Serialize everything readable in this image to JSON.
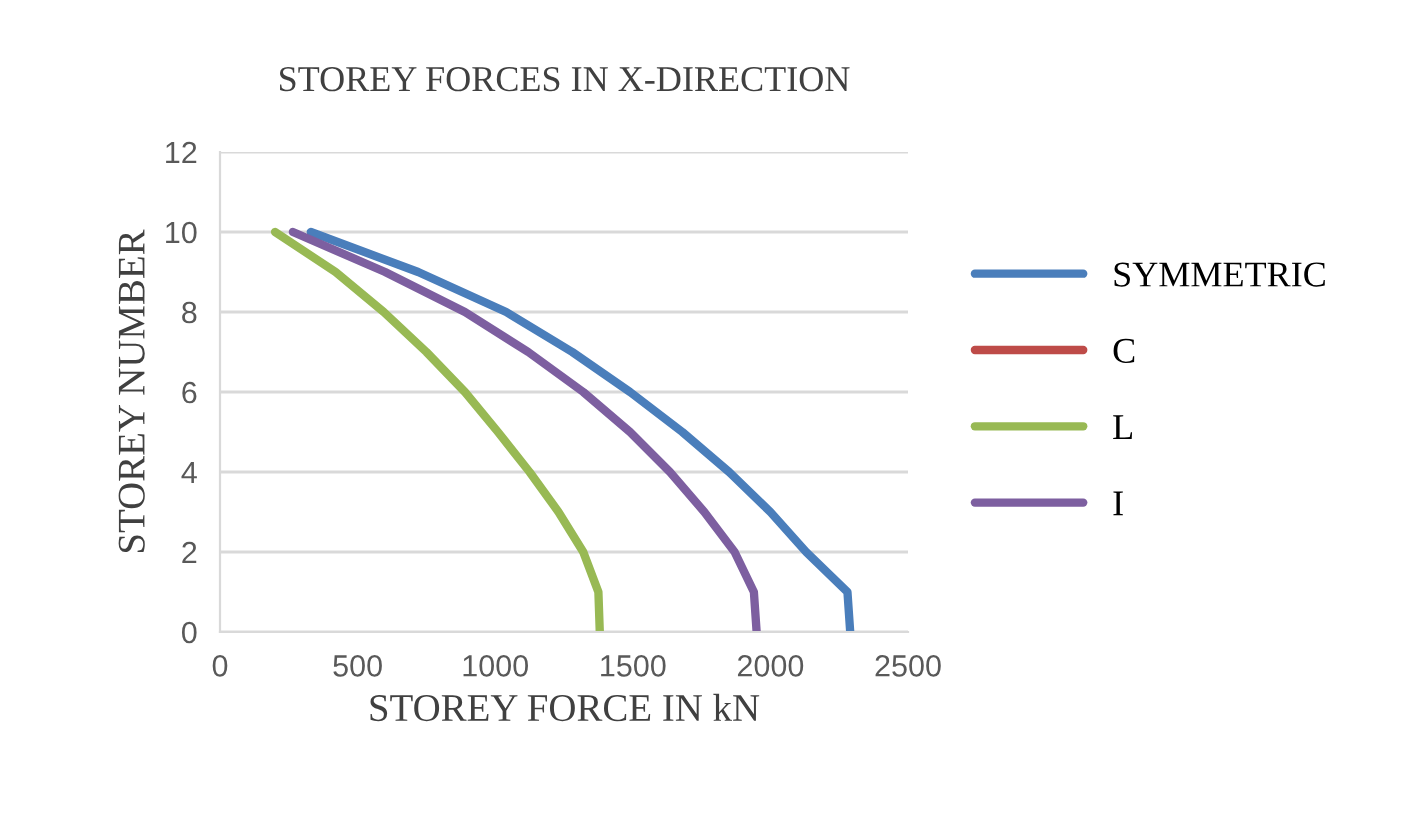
{
  "chart_data": {
    "type": "line",
    "title": "STOREY FORCES IN X-DIRECTION",
    "xlabel": "STOREY FORCE IN kN",
    "ylabel": "STOREY NUMBER",
    "series": [
      {
        "name": "SYMMETRIC",
        "color": "#4a7ebb",
        "x": [
          2290,
          2280,
          2130,
          2000,
          1850,
          1680,
          1490,
          1280,
          1040,
          720,
          330
        ],
        "values": [
          0,
          1,
          2,
          3,
          4,
          5,
          6,
          7,
          8,
          9,
          10
        ]
      },
      {
        "name": "C",
        "color": "#be4b48",
        "x": [
          null,
          null,
          null,
          null,
          null,
          null,
          null,
          null,
          null,
          null,
          null
        ],
        "values": [
          null,
          null,
          null,
          null,
          null,
          null,
          null,
          null,
          null,
          null,
          null
        ]
      },
      {
        "name": "L",
        "color": "#98b954",
        "x": [
          1380,
          1375,
          1320,
          1230,
          1125,
          1010,
          890,
          750,
          595,
          420,
          200
        ],
        "values": [
          0,
          1,
          2,
          3,
          4,
          5,
          6,
          7,
          8,
          9,
          10
        ]
      },
      {
        "name": "I",
        "color": "#7d5fa0",
        "x": [
          1950,
          1940,
          1870,
          1760,
          1635,
          1490,
          1320,
          1120,
          890,
          600,
          265
        ],
        "values": [
          0,
          1,
          2,
          3,
          4,
          5,
          6,
          7,
          8,
          9,
          10
        ]
      }
    ],
    "xlim": [
      0,
      2500
    ],
    "xticks": [
      0,
      500,
      1000,
      1500,
      2000,
      2500
    ],
    "ylim": [
      0,
      12
    ],
    "yticks": [
      0,
      2,
      4,
      6,
      8,
      10,
      12
    ],
    "grid": "y",
    "legend": "right",
    "marker": "none",
    "line_style": "solid"
  }
}
